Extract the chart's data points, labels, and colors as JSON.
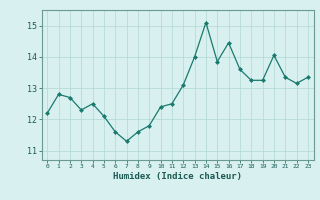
{
  "x": [
    0,
    1,
    2,
    3,
    4,
    5,
    6,
    7,
    8,
    9,
    10,
    11,
    12,
    13,
    14,
    15,
    16,
    17,
    18,
    19,
    20,
    21,
    22,
    23
  ],
  "y": [
    12.2,
    12.8,
    12.7,
    12.3,
    12.5,
    12.1,
    11.6,
    11.3,
    11.6,
    11.8,
    12.4,
    12.5,
    13.1,
    14.0,
    15.1,
    13.85,
    14.45,
    13.6,
    13.25,
    13.25,
    14.05,
    13.35,
    13.15,
    13.35
  ],
  "xlabel": "Humidex (Indice chaleur)",
  "ylim": [
    10.7,
    15.5
  ],
  "xlim": [
    -0.5,
    23.5
  ],
  "yticks": [
    11,
    12,
    13,
    14,
    15
  ],
  "xticks": [
    0,
    1,
    2,
    3,
    4,
    5,
    6,
    7,
    8,
    9,
    10,
    11,
    12,
    13,
    14,
    15,
    16,
    17,
    18,
    19,
    20,
    21,
    22,
    23
  ],
  "line_color": "#1a7a6e",
  "marker_color": "#1a7a6e",
  "bg_color": "#d8f0f0",
  "grid_color": "#b0d8d4",
  "axis_color": "#6a9a90",
  "tick_label_color": "#1a5a52",
  "xlabel_color": "#1a5a52"
}
